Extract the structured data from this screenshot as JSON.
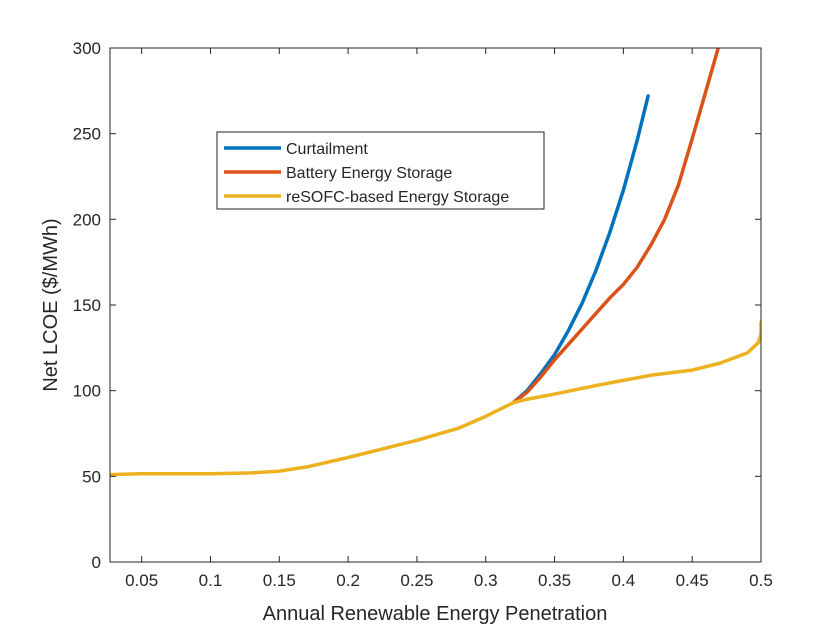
{
  "chart_data": {
    "type": "line",
    "title": "",
    "xlabel": "Annual Renewable Energy Penetration",
    "ylabel": "Net LCOE ($/MWh)",
    "xlim": [
      0.027,
      0.5
    ],
    "ylim": [
      0,
      300
    ],
    "xticks": [
      "0.05",
      "0.1",
      "0.15",
      "0.2",
      "0.25",
      "0.3",
      "0.35",
      "0.4",
      "0.45",
      "0.5"
    ],
    "yticks": [
      "0",
      "50",
      "100",
      "150",
      "200",
      "250",
      "300"
    ],
    "grid": false,
    "legend_position": "upper-left-inside",
    "series": [
      {
        "name": "Curtailment",
        "color": "#0072BD",
        "x": [
          0.32,
          0.33,
          0.34,
          0.35,
          0.36,
          0.37,
          0.38,
          0.39,
          0.4,
          0.41,
          0.418
        ],
        "y": [
          93,
          100,
          110,
          121,
          135,
          151,
          170,
          192,
          217,
          246,
          272
        ]
      },
      {
        "name": "Battery Energy Storage",
        "color": "#D95319",
        "x": [
          0.32,
          0.33,
          0.34,
          0.35,
          0.36,
          0.37,
          0.38,
          0.39,
          0.4,
          0.41,
          0.42,
          0.43,
          0.44,
          0.45,
          0.46,
          0.47
        ],
        "y": [
          93,
          99,
          108,
          118,
          127,
          136,
          145,
          154,
          162,
          172,
          185,
          200,
          220,
          247,
          275,
          303
        ]
      },
      {
        "name": "reSOFC-based Energy Storage",
        "color": "#EDB120",
        "x": [
          0.027,
          0.05,
          0.1,
          0.13,
          0.15,
          0.17,
          0.2,
          0.23,
          0.25,
          0.28,
          0.3,
          0.32,
          0.33,
          0.35,
          0.38,
          0.4,
          0.42,
          0.45,
          0.47,
          0.49,
          0.498,
          0.5,
          0.5
        ],
        "y": [
          51,
          51.5,
          51.5,
          52,
          53,
          55.5,
          61,
          67,
          71,
          78,
          85,
          93,
          95,
          98,
          103,
          106,
          109,
          112,
          116,
          122,
          128,
          133,
          140
        ]
      }
    ]
  }
}
